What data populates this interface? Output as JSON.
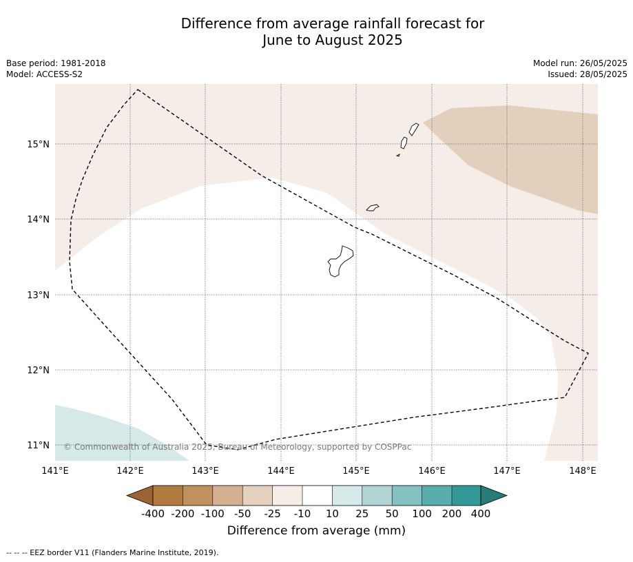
{
  "title_line1": "Difference from average rainfall forecast for",
  "title_line2": "June to August 2025",
  "meta_left": {
    "base_period": "Base period: 1981-2018",
    "model": "Model: ACCESS-S2"
  },
  "meta_right": {
    "model_run": "Model run: 26/05/2025",
    "issued": "Issued: 28/05/2025"
  },
  "map": {
    "lon_labels": [
      "141°E",
      "142°E",
      "143°E",
      "144°E",
      "145°E",
      "146°E",
      "147°E",
      "148°E"
    ],
    "lat_labels": [
      "15°N",
      "14°N",
      "13°N",
      "12°N",
      "11°N"
    ],
    "copyright": "© Commonwealth of Australia 2025, Bureau of Meteorology, supported by COSPPac"
  },
  "colorbar": {
    "label": "Difference from average (mm)",
    "ticks": [
      "-400",
      "-200",
      "-100",
      "-50",
      "-25",
      "-10",
      "10",
      "25",
      "50",
      "100",
      "200",
      "400"
    ],
    "colors": [
      "#9b6433",
      "#b07a40",
      "#c0915f",
      "#d3b08f",
      "#e4d0be",
      "#f4ede8",
      "#ffffff",
      "#d5e9e8",
      "#b0d5d4",
      "#84c1c0",
      "#59adab",
      "#339997",
      "#277c79"
    ]
  },
  "footer": "--  --  -- EEZ border V11 (Flanders Marine Institute, 2019)."
}
